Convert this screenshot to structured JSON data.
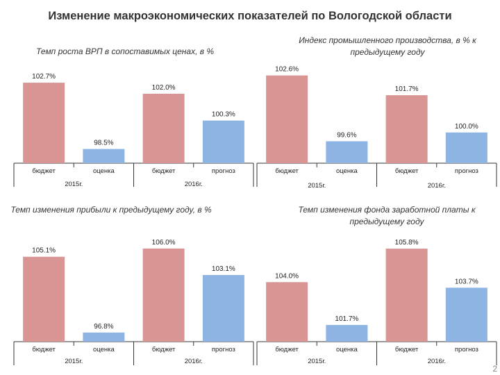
{
  "page": {
    "title": "Изменение макроэкономических показателей по Вологодской области",
    "page_number": "2"
  },
  "colors": {
    "budget": "#d99594",
    "estimate": "#8db4e2",
    "axis": "#333333"
  },
  "chart_data": [
    {
      "type": "bar",
      "title": "Темп роста ВРП в сопоставимых ценах, в %",
      "categories": [
        "бюджет",
        "оценка",
        "бюджет",
        "прогноз"
      ],
      "groups": [
        "2015г.",
        "2016г."
      ],
      "values": [
        102.7,
        98.5,
        102.0,
        100.3
      ],
      "labels": [
        "102.7%",
        "98.5%",
        "102.0%",
        "100.3%"
      ],
      "bar_types": [
        "budget",
        "estimate",
        "budget",
        "estimate"
      ],
      "ylim": [
        97.6,
        103.1
      ]
    },
    {
      "type": "bar",
      "title": "Индекс промышленного производства, в % к предыдущему году",
      "categories": [
        "бюджет",
        "оценка",
        "бюджет",
        "прогноз"
      ],
      "groups": [
        "2015г.",
        "2016г."
      ],
      "values": [
        102.6,
        99.6,
        101.7,
        100.0
      ],
      "labels": [
        "102.6%",
        "99.6%",
        "101.7%",
        "100.0%"
      ],
      "bar_types": [
        "budget",
        "estimate",
        "budget",
        "estimate"
      ],
      "ylim": [
        98.6,
        103.0
      ]
    },
    {
      "type": "bar",
      "title": "Темп изменения прибыли к предыдущему году, в %",
      "categories": [
        "бюджет",
        "оценка",
        "бюджет",
        "прогноз"
      ],
      "groups": [
        "2015г.",
        "2016г."
      ],
      "values": [
        105.1,
        96.8,
        106.0,
        103.1
      ],
      "labels": [
        "105.1%",
        "96.8%",
        "106.0%",
        "103.1%"
      ],
      "bar_types": [
        "budget",
        "estimate",
        "budget",
        "estimate"
      ],
      "ylim": [
        95.8,
        106.6
      ]
    },
    {
      "type": "bar",
      "title": "Темп изменения фонда заработной платы к предыдущему году",
      "categories": [
        "бюджет",
        "оценка",
        "бюджет",
        "прогноз"
      ],
      "groups": [
        "2015г.",
        "2016г."
      ],
      "values": [
        104.0,
        101.7,
        105.8,
        103.7
      ],
      "labels": [
        "104.0%",
        "101.7%",
        "105.8%",
        "103.7%"
      ],
      "bar_types": [
        "budget",
        "estimate",
        "budget",
        "estimate"
      ],
      "ylim": [
        100.8,
        106.1
      ]
    }
  ]
}
